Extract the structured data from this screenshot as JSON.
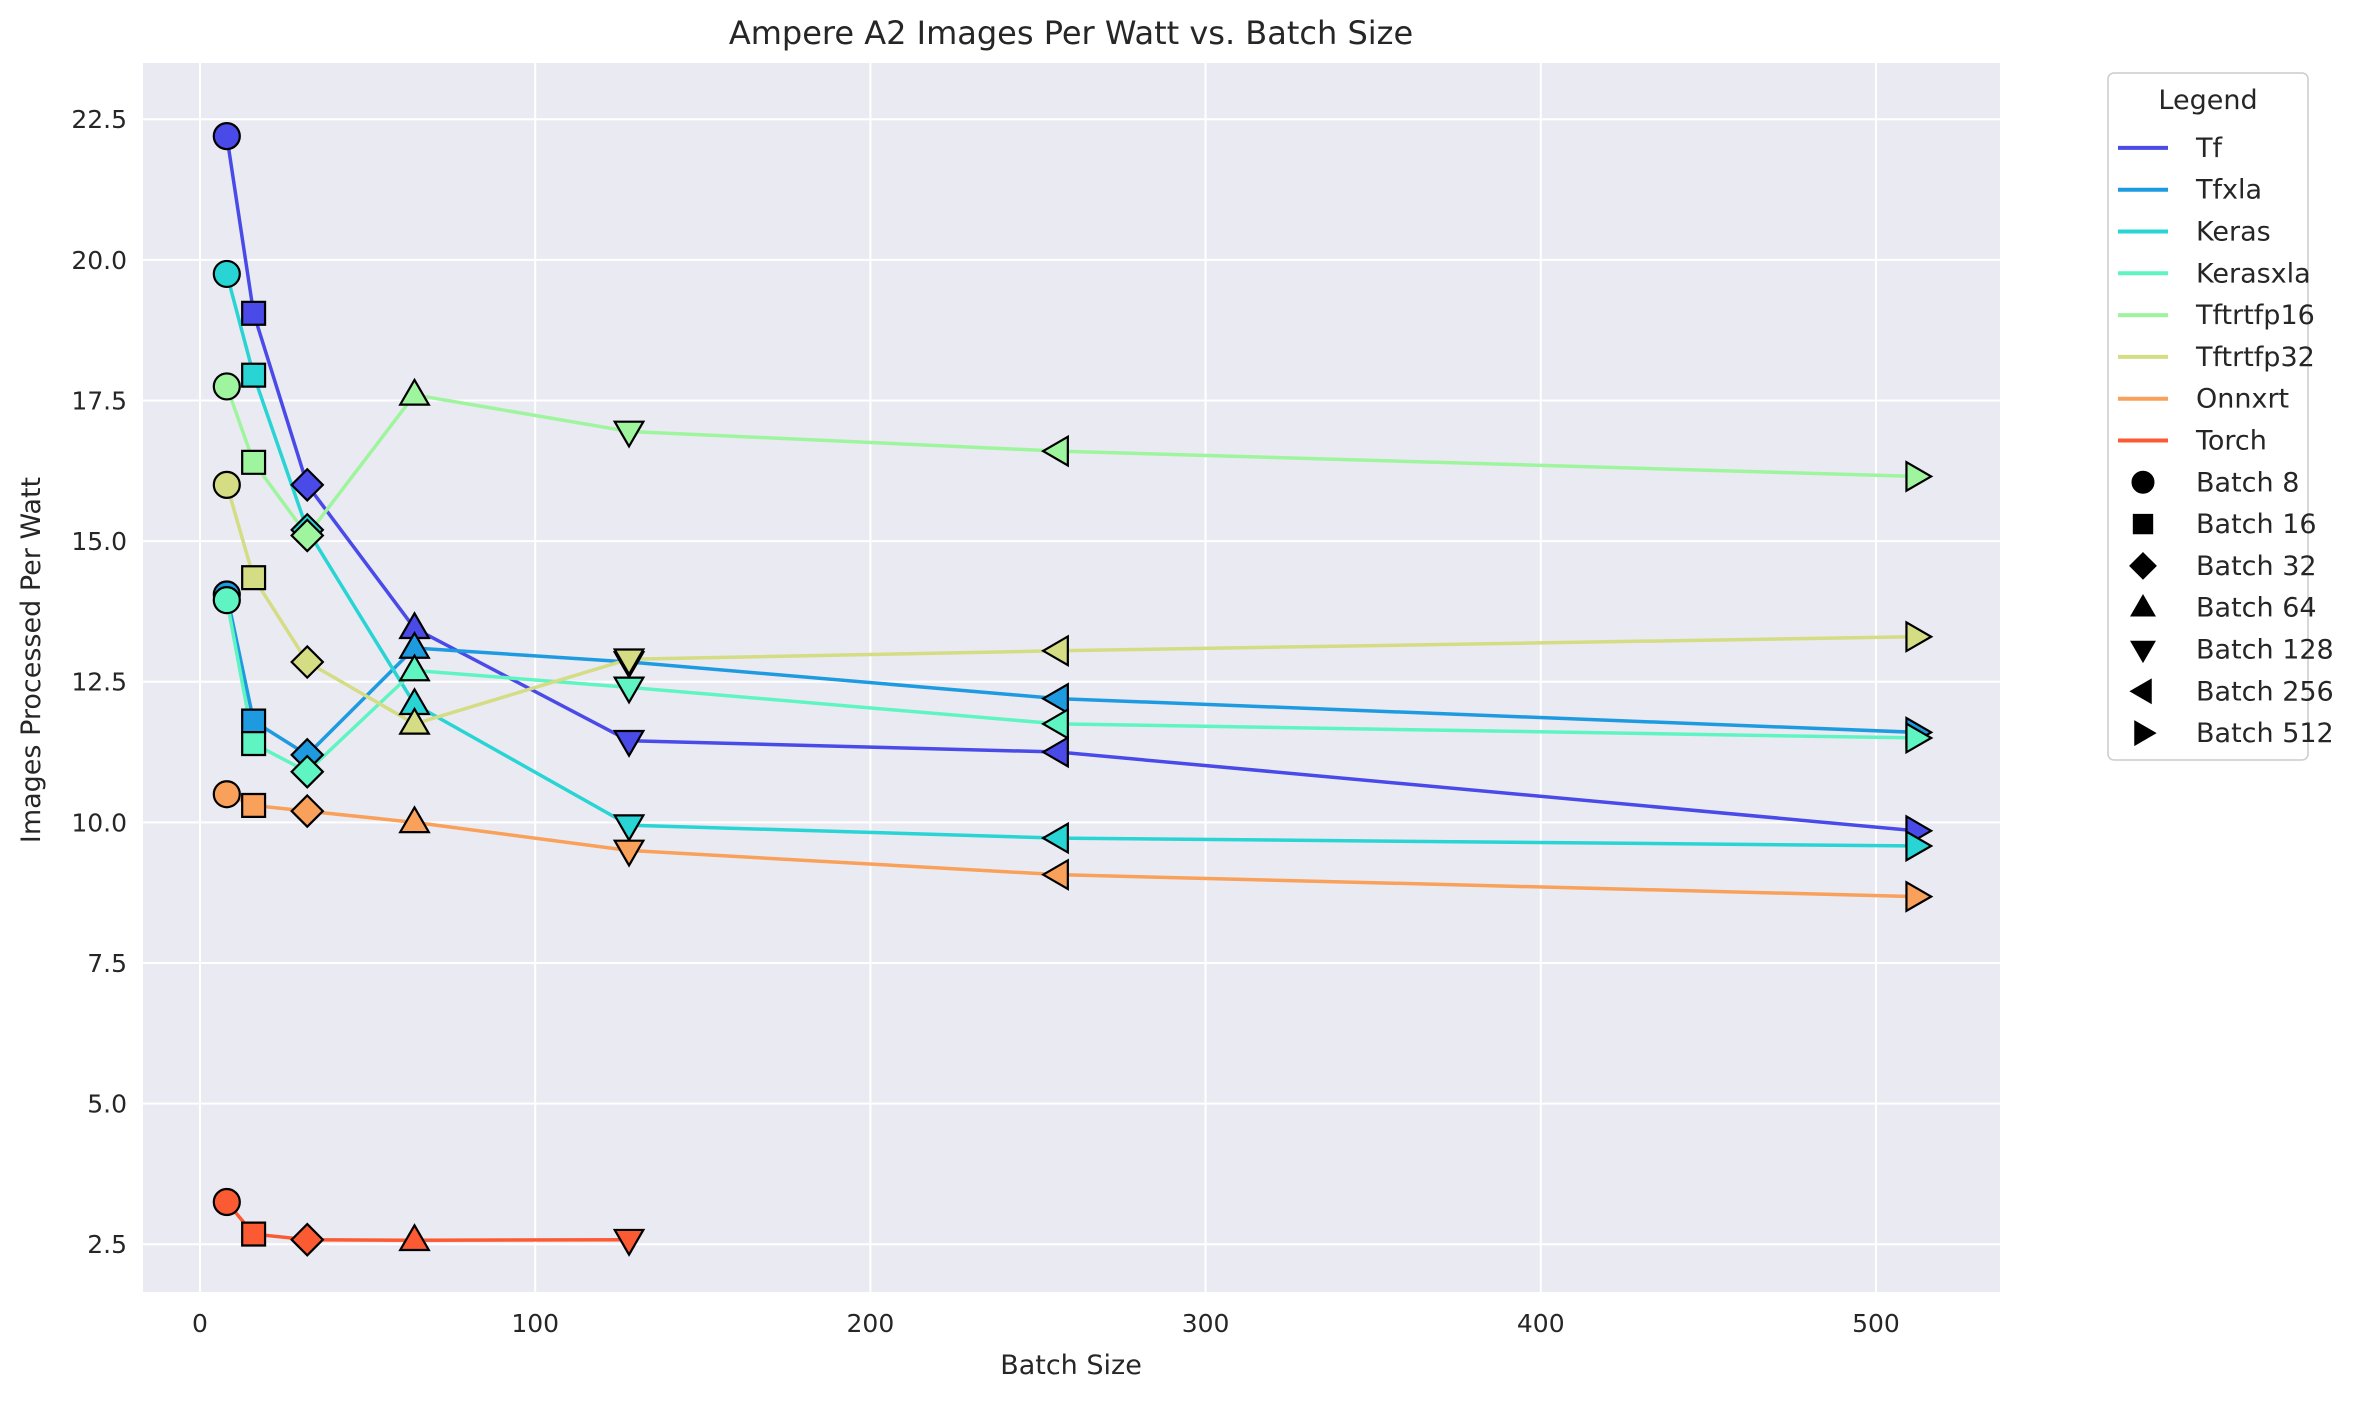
{
  "chart_data": {
    "type": "line",
    "title": "Ampere A2 Images Per Watt vs. Batch Size",
    "xlabel": "Batch Size",
    "ylabel": "Images Processed Per Watt",
    "xlim": [
      -17,
      537
    ],
    "ylim": [
      1.65,
      23.5
    ],
    "xticks": [
      0,
      100,
      200,
      300,
      400,
      500
    ],
    "xtick_labels": [
      "0",
      "100",
      "200",
      "300",
      "400",
      "500"
    ],
    "yticks": [
      2.5,
      5.0,
      7.5,
      10.0,
      12.5,
      15.0,
      17.5,
      20.0,
      22.5
    ],
    "ytick_labels": [
      "2.5",
      "5.0",
      "7.5",
      "10.0",
      "12.5",
      "15.0",
      "17.5",
      "20.0",
      "22.5"
    ],
    "grid": true,
    "legend_placement": "outside-top-right",
    "legend_title": "Legend",
    "x": [
      8,
      16,
      32,
      64,
      128,
      256,
      512
    ],
    "marker_shapes": [
      "circle",
      "square",
      "diamond",
      "triangle-up",
      "triangle-down",
      "triangle-left",
      "triangle-right"
    ],
    "series": [
      {
        "name": "Tf",
        "color": "#4a4ae8",
        "values": [
          22.2,
          19.05,
          16.0,
          13.45,
          11.45,
          11.25,
          9.85
        ]
      },
      {
        "name": "Tfxla",
        "color": "#1e9be0",
        "values": [
          14.05,
          11.8,
          11.2,
          13.1,
          12.85,
          12.2,
          11.6
        ]
      },
      {
        "name": "Keras",
        "color": "#29d4d4",
        "values": [
          19.75,
          17.95,
          15.2,
          12.1,
          9.95,
          9.72,
          9.58
        ]
      },
      {
        "name": "Kerasxla",
        "color": "#5ff5c2",
        "values": [
          13.95,
          11.4,
          10.9,
          12.7,
          12.4,
          11.75,
          11.5
        ]
      },
      {
        "name": "Tftrtfp16",
        "color": "#9ef59e",
        "values": [
          17.75,
          16.4,
          15.1,
          17.6,
          16.95,
          16.6,
          16.15
        ]
      },
      {
        "name": "Tftrtfp32",
        "color": "#d4dc84",
        "values": [
          16.0,
          14.35,
          12.85,
          11.75,
          12.9,
          13.05,
          13.3
        ]
      },
      {
        "name": "Onnxrt",
        "color": "#f9a05a",
        "values": [
          10.5,
          10.3,
          10.2,
          10.0,
          9.5,
          9.07,
          8.68
        ]
      },
      {
        "name": "Torch",
        "color": "#fb5a32",
        "values": [
          3.25,
          2.68,
          2.58,
          2.57,
          2.58,
          null,
          null
        ]
      }
    ],
    "batch_legend": [
      {
        "label": "Batch 8",
        "shape": "circle"
      },
      {
        "label": "Batch 16",
        "shape": "square"
      },
      {
        "label": "Batch 32",
        "shape": "diamond"
      },
      {
        "label": "Batch 64",
        "shape": "triangle-up"
      },
      {
        "label": "Batch 128",
        "shape": "triangle-down"
      },
      {
        "label": "Batch 256",
        "shape": "triangle-left"
      },
      {
        "label": "Batch 512",
        "shape": "triangle-right"
      }
    ],
    "colors": {
      "plot_background": "#eaeaf2",
      "grid": "#ffffff",
      "marker_edge": "#000000",
      "legend_marker": "#000000"
    }
  }
}
